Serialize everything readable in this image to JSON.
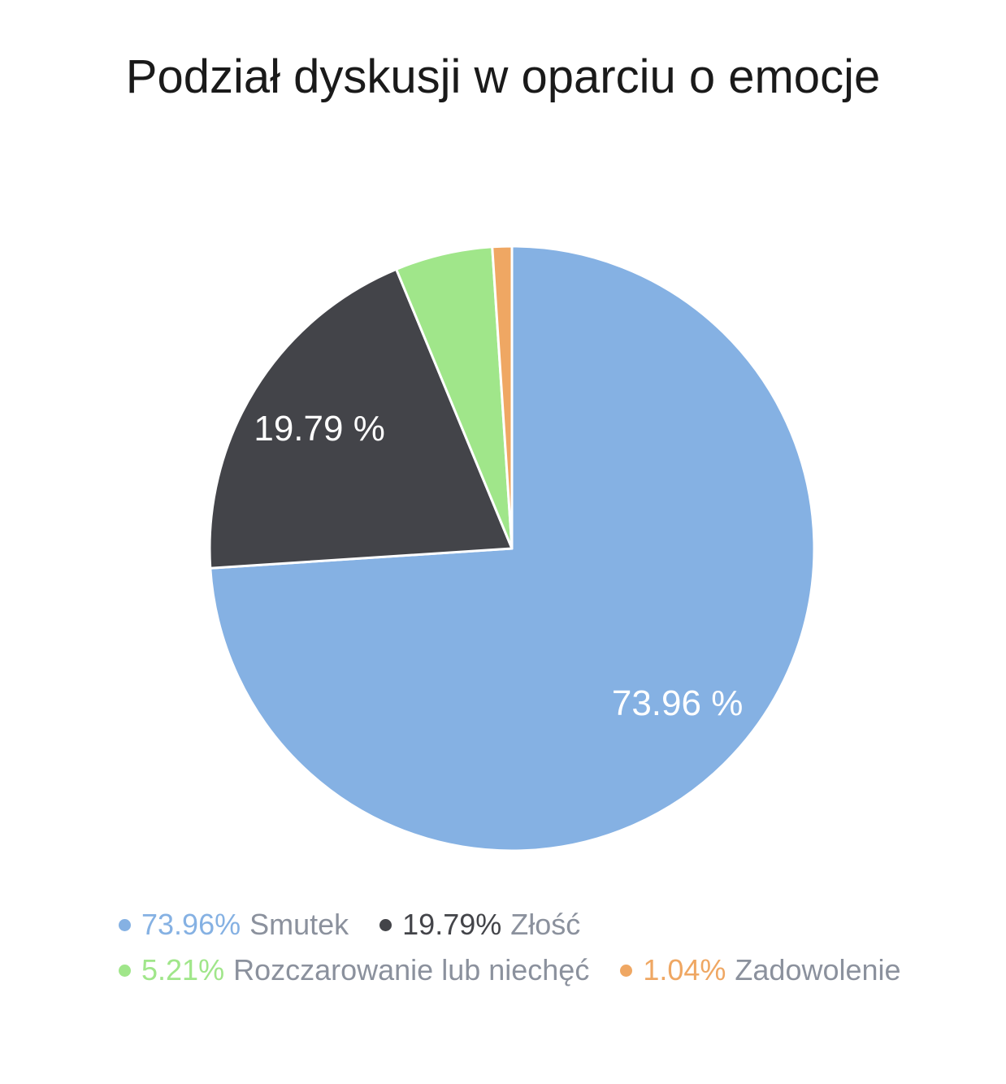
{
  "title": {
    "text": "Podział dyskusji w oparciu o emocje",
    "color": "#1a1a1a"
  },
  "chart_data": {
    "type": "pie",
    "title": "Podział dyskusji w oparciu o emocje",
    "start_angle_deg": 0,
    "direction": "clockwise",
    "total": 100,
    "data_label_color": "#ffffff",
    "slice_border_color": "#ffffff",
    "legend_position": "bottom",
    "slices": [
      {
        "id": "smutek",
        "label": "Smutek",
        "value": 73.96,
        "percent_text": "73.96%",
        "pie_label": "73.96 %",
        "color": "#85b1e3"
      },
      {
        "id": "zlosc",
        "label": "Złość",
        "value": 19.79,
        "percent_text": "19.79%",
        "pie_label": "19.79 %",
        "color": "#434449"
      },
      {
        "id": "rozczarowanie",
        "label": "Rozczarowanie lub niechęć",
        "value": 5.21,
        "percent_text": "5.21%",
        "pie_label": "",
        "color": "#a0e68a"
      },
      {
        "id": "zadowolenie",
        "label": "Zadowolenie",
        "value": 1.04,
        "percent_text": "1.04%",
        "pie_label": "",
        "color": "#efa763"
      }
    ]
  }
}
